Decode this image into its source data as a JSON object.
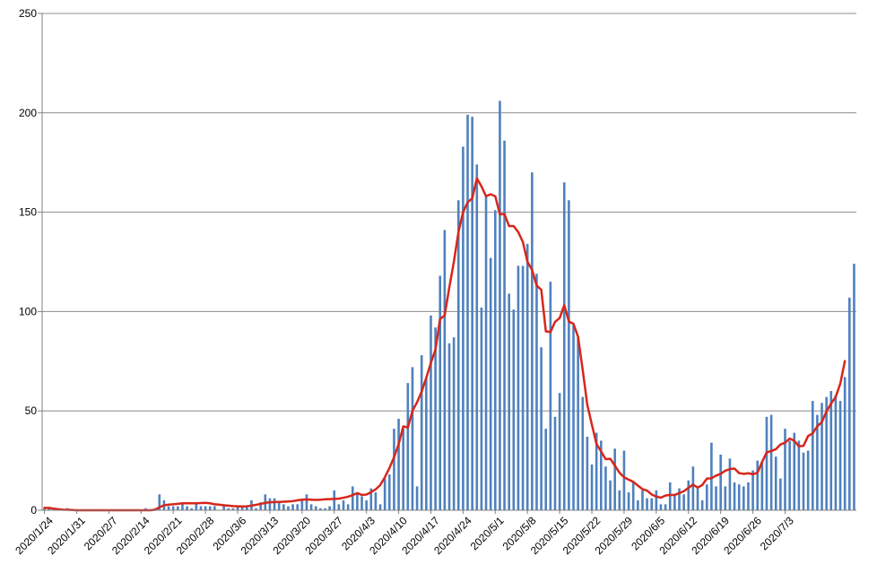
{
  "chart_data": {
    "type": "bar",
    "title": "",
    "xlabel": "",
    "ylabel": "",
    "ylim": [
      0,
      250
    ],
    "y_ticks": [
      0,
      50,
      100,
      150,
      200,
      250
    ],
    "grid": "horizontal",
    "legend": "none",
    "colors": {
      "bar": "#4f81bd",
      "line": "#d7261b",
      "grid": "#8c8c8c",
      "axis": "#808080"
    },
    "x_tick_labels": [
      "2020/1/24",
      "2020/1/31",
      "2020/2/7",
      "2020/2/14",
      "2020/2/21",
      "2020/2/28",
      "2020/3/6",
      "2020/3/13",
      "2020/3/20",
      "2020/3/27",
      "2020/4/3",
      "2020/4/10",
      "2020/4/17",
      "2020/4/24",
      "2020/5/1",
      "2020/5/8",
      "2020/5/15",
      "2020/5/22",
      "2020/5/29",
      "2020/6/5",
      "2020/6/12",
      "2020/6/19",
      "2020/6/26",
      "2020/7/3"
    ],
    "series": [
      {
        "type": "bar",
        "start_date": "2020-01-24",
        "values": [
          1,
          1,
          0,
          0,
          0,
          1,
          0,
          0,
          0,
          0,
          0,
          0,
          0,
          0,
          0,
          0,
          0,
          0,
          0,
          0,
          0,
          0,
          1,
          0,
          1,
          8,
          5,
          2,
          2,
          2,
          3,
          2,
          1,
          4,
          2,
          2,
          2,
          2,
          0,
          3,
          1,
          1,
          2,
          2,
          2,
          5,
          1,
          4,
          8,
          6,
          6,
          4,
          3,
          2,
          3,
          3,
          5,
          8,
          3,
          2,
          1,
          1,
          2,
          10,
          3,
          5,
          3,
          12,
          9,
          7,
          5,
          11,
          9,
          3,
          16,
          18,
          41,
          46,
          41,
          64,
          72,
          12,
          78,
          67,
          98,
          92,
          118,
          141,
          84,
          87,
          156,
          183,
          199,
          198,
          174,
          102,
          158,
          127,
          151,
          206,
          186,
          109,
          101,
          123,
          123,
          134,
          170,
          119,
          82,
          41,
          115,
          47,
          59,
          165,
          156,
          93,
          87,
          57,
          37,
          23,
          39,
          35,
          22,
          15,
          31,
          10,
          30,
          9,
          14,
          5,
          10,
          6,
          6,
          10,
          3,
          3,
          14,
          8,
          11,
          8,
          15,
          22,
          12,
          5,
          13,
          34,
          12,
          28,
          12,
          26,
          14,
          13,
          12,
          14,
          20,
          25,
          24,
          47,
          48,
          27,
          16,
          41,
          35,
          39,
          35,
          29,
          30,
          55,
          48,
          54,
          57,
          60,
          58,
          55,
          67,
          107,
          124
        ]
      },
      {
        "type": "line",
        "values": [
          1.2,
          1.2,
          0.8,
          0.5,
          0.3,
          0.2,
          0.1,
          0,
          0,
          0,
          0,
          0,
          0,
          0,
          0,
          0,
          0,
          0,
          0,
          0,
          0,
          0,
          0,
          0,
          0.2,
          1.5,
          2.5,
          2.8,
          3,
          3.2,
          3.5,
          3.5,
          3.5,
          3.5,
          3.6,
          3.7,
          3.5,
          3,
          2.8,
          2.5,
          2.3,
          2.1,
          2,
          1.9,
          2,
          2.3,
          2.7,
          3.2,
          3.7,
          4,
          4.1,
          4.2,
          4.3,
          4.4,
          4.6,
          5,
          5.3,
          5.4,
          5.3,
          5.2,
          5.3,
          5.5,
          5.6,
          5.7,
          5.8,
          6.3,
          6.8,
          7.6,
          8.6,
          7.7,
          7.9,
          9.1,
          10.5,
          12.7,
          16.6,
          21.3,
          26.7,
          33.2,
          42.2,
          41.6,
          50,
          54.3,
          59.7,
          66.6,
          74.2,
          80.8,
          96.3,
          98,
          112,
          125,
          140,
          150,
          155,
          157,
          167,
          163,
          158,
          159,
          158,
          149,
          149,
          143,
          143,
          140,
          135,
          125,
          121,
          113,
          111,
          90,
          89.7,
          94.8,
          96.7,
          103.2,
          95,
          93.8,
          87.3,
          70.7,
          53.1,
          43.1,
          33.4,
          29.6,
          25.7,
          25.9,
          22.4,
          18.9,
          16.6,
          15.4,
          14.3,
          12.4,
          10.6,
          9.9,
          7.9,
          6.9,
          6.3,
          7.4,
          7.7,
          7.7,
          8.6,
          9.6,
          11.3,
          12.9,
          11.4,
          12.7,
          15.9,
          16.1,
          17.4,
          18.3,
          19.9,
          20.7,
          21,
          18.7,
          18.3,
          18.6,
          18.1,
          18.9,
          24.3,
          29.1,
          29.8,
          30.7,
          33.1,
          34,
          36.1,
          34.9,
          32.2,
          32.4,
          37.3,
          38.7,
          42.2,
          44.4,
          49.7,
          53.7,
          57,
          63.7,
          75.1
        ]
      }
    ]
  }
}
